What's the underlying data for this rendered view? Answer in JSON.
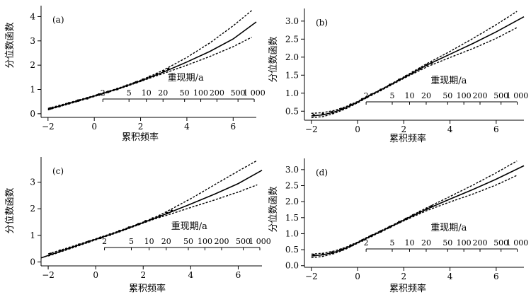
{
  "figure": {
    "panels": [
      "(a)",
      "(b)",
      "(c)",
      "(d)"
    ],
    "x_label": "累积频率",
    "y_label": "分位数函数",
    "return_period_title": "重现期/a"
  },
  "chart_data": [
    {
      "type": "line",
      "panel_label": "(a)",
      "xlabel": "累积频率",
      "ylabel": "分位数函数",
      "xlim": [
        -2.3,
        7.0
      ],
      "ylim": [
        -0.15,
        4.45
      ],
      "xticks": [
        -2,
        0,
        2,
        4,
        6
      ],
      "yticks": [
        0,
        1,
        2,
        3,
        4
      ],
      "return_period": {
        "title": "重现期/a",
        "labels": [
          "2",
          "5",
          "10",
          "20",
          "50",
          "100",
          "200",
          "500",
          "1 000"
        ],
        "positions": [
          0.37,
          1.5,
          2.25,
          2.97,
          3.9,
          4.6,
          5.3,
          6.21,
          6.91
        ]
      },
      "series": [
        {
          "style": "solid",
          "x": [
            -2.0,
            -1.0,
            0.0,
            1.0,
            2.0,
            3.0,
            4.0,
            5.0,
            6.0,
            7.0
          ],
          "y": [
            0.18,
            0.45,
            0.73,
            1.02,
            1.35,
            1.72,
            2.13,
            2.57,
            3.08,
            3.78
          ]
        },
        {
          "style": "dashed",
          "x": [
            -2.0,
            -1.0,
            0.0,
            1.0,
            2.0,
            2.5,
            3.0,
            4.0,
            5.0,
            6.0,
            6.8
          ],
          "y": [
            0.22,
            0.48,
            0.75,
            1.04,
            1.38,
            1.58,
            1.8,
            2.32,
            2.92,
            3.62,
            4.25
          ]
        },
        {
          "style": "dashed",
          "x": [
            -2.0,
            -1.0,
            0.0,
            1.0,
            2.0,
            2.5,
            3.0,
            4.0,
            5.0,
            6.0,
            6.8
          ],
          "y": [
            0.16,
            0.43,
            0.71,
            1.0,
            1.33,
            1.5,
            1.66,
            2.0,
            2.36,
            2.76,
            3.15
          ]
        }
      ],
      "points": {
        "x": [
          -1.9,
          -1.5,
          -1.1,
          -0.7,
          -0.3,
          0.2,
          0.6,
          1.0,
          1.4,
          1.8,
          2.1,
          2.4,
          2.7,
          3.0,
          3.2
        ],
        "y": [
          0.22,
          0.32,
          0.43,
          0.54,
          0.64,
          0.79,
          0.9,
          1.02,
          1.15,
          1.29,
          1.4,
          1.52,
          1.64,
          1.75,
          1.84
        ]
      }
    },
    {
      "type": "line",
      "panel_label": "(b)",
      "xlabel": "累积频率",
      "ylabel": "分位数函数",
      "xlim": [
        -2.3,
        7.2
      ],
      "ylim": [
        0.25,
        3.35
      ],
      "xticks": [
        -2,
        0,
        2,
        4,
        6
      ],
      "yticks": [
        0.5,
        1.0,
        1.5,
        2.0,
        2.5,
        3.0
      ],
      "return_period": {
        "title": "重现期/a",
        "labels": [
          "2",
          "5",
          "10",
          "20",
          "50",
          "100",
          "200",
          "500",
          "1 000"
        ],
        "positions": [
          0.37,
          1.5,
          2.25,
          2.97,
          3.9,
          4.6,
          5.3,
          6.21,
          6.91
        ]
      },
      "series": [
        {
          "style": "solid",
          "x": [
            -2.0,
            -1.5,
            -1.0,
            -0.5,
            0.0,
            0.5,
            1.0,
            2.0,
            3.0,
            4.0,
            5.0,
            6.0,
            7.2
          ],
          "y": [
            0.37,
            0.4,
            0.48,
            0.6,
            0.75,
            0.93,
            1.09,
            1.43,
            1.78,
            2.08,
            2.38,
            2.7,
            3.12
          ]
        },
        {
          "style": "dashed",
          "x": [
            -2.0,
            -1.5,
            -1.0,
            -0.5,
            0.0,
            0.5,
            1.0,
            2.0,
            3.0,
            4.0,
            5.0,
            6.0,
            6.9
          ],
          "y": [
            0.44,
            0.46,
            0.52,
            0.63,
            0.77,
            0.94,
            1.1,
            1.45,
            1.82,
            2.16,
            2.52,
            2.9,
            3.27
          ]
        },
        {
          "style": "dashed",
          "x": [
            -2.0,
            -1.5,
            -1.0,
            -0.5,
            0.0,
            0.5,
            1.0,
            2.0,
            3.0,
            4.0,
            5.0,
            6.0,
            6.9
          ],
          "y": [
            0.32,
            0.35,
            0.44,
            0.57,
            0.73,
            0.91,
            1.07,
            1.41,
            1.73,
            1.99,
            2.24,
            2.52,
            2.82
          ]
        }
      ],
      "points": {
        "x": [
          -1.9,
          -1.5,
          -1.1,
          -0.7,
          -0.3,
          0.2,
          0.6,
          1.0,
          1.4,
          1.8,
          2.1,
          2.4,
          2.7,
          3.0,
          3.2
        ],
        "y": [
          0.39,
          0.42,
          0.47,
          0.56,
          0.68,
          0.83,
          0.96,
          1.09,
          1.23,
          1.37,
          1.47,
          1.58,
          1.68,
          1.78,
          1.84
        ]
      }
    },
    {
      "type": "line",
      "panel_label": "(c)",
      "xlabel": "累积频率",
      "ylabel": "分位数函数",
      "xlim": [
        -2.3,
        7.0
      ],
      "ylim": [
        -0.15,
        3.95
      ],
      "xticks": [
        -2,
        0,
        2,
        4,
        6
      ],
      "yticks": [
        0,
        1,
        2,
        3
      ],
      "return_period": {
        "title": "重现期/a",
        "labels": [
          "2",
          "5",
          "10",
          "20",
          "50",
          "100",
          "200",
          "500",
          "1 000"
        ],
        "positions": [
          0.37,
          1.5,
          2.25,
          2.97,
          3.9,
          4.6,
          5.3,
          6.21,
          6.91
        ]
      },
      "series": [
        {
          "style": "solid",
          "x": [
            -2.3,
            -1.0,
            0.0,
            1.0,
            2.0,
            3.0,
            4.0,
            5.0,
            6.0,
            7.0
          ],
          "y": [
            0.15,
            0.55,
            0.85,
            1.15,
            1.48,
            1.82,
            2.18,
            2.55,
            2.95,
            3.45
          ]
        },
        {
          "style": "dashed",
          "x": [
            -2.0,
            -1.0,
            0.0,
            1.0,
            2.0,
            2.5,
            3.0,
            4.0,
            5.0,
            6.0,
            6.8
          ],
          "y": [
            0.3,
            0.58,
            0.87,
            1.17,
            1.5,
            1.68,
            1.9,
            2.38,
            2.9,
            3.42,
            3.82
          ]
        },
        {
          "style": "dashed",
          "x": [
            -2.0,
            -1.0,
            0.0,
            1.0,
            2.0,
            2.5,
            3.0,
            4.0,
            5.0,
            6.0,
            6.8
          ],
          "y": [
            0.22,
            0.52,
            0.83,
            1.13,
            1.46,
            1.62,
            1.76,
            2.05,
            2.33,
            2.63,
            2.9
          ]
        }
      ],
      "points": {
        "x": [
          -1.9,
          -1.5,
          -1.1,
          -0.7,
          -0.3,
          0.2,
          0.6,
          1.0,
          1.4,
          1.8,
          2.1,
          2.4,
          2.7,
          3.0,
          3.2
        ],
        "y": [
          0.3,
          0.42,
          0.53,
          0.65,
          0.76,
          0.91,
          1.03,
          1.16,
          1.29,
          1.42,
          1.53,
          1.63,
          1.73,
          1.84,
          1.92
        ]
      }
    },
    {
      "type": "line",
      "panel_label": "(d)",
      "xlabel": "累积频率",
      "ylabel": "分位数函数",
      "xlim": [
        -2.3,
        7.2
      ],
      "ylim": [
        -0.05,
        3.35
      ],
      "xticks": [
        -2,
        0,
        2,
        4,
        6
      ],
      "yticks": [
        0,
        0.5,
        1.0,
        1.5,
        2.0,
        2.5,
        3.0
      ],
      "return_period": {
        "title": "重现期/a",
        "labels": [
          "2",
          "5",
          "10",
          "20",
          "50",
          "100",
          "200",
          "500",
          "1 000"
        ],
        "positions": [
          0.37,
          1.5,
          2.25,
          2.97,
          3.9,
          4.6,
          5.3,
          6.21,
          6.91
        ]
      },
      "series": [
        {
          "style": "solid",
          "x": [
            -2.0,
            -1.5,
            -1.0,
            -0.5,
            0.0,
            0.5,
            1.0,
            2.0,
            3.0,
            4.0,
            5.0,
            6.0,
            7.2
          ],
          "y": [
            0.3,
            0.34,
            0.42,
            0.55,
            0.72,
            0.9,
            1.07,
            1.42,
            1.77,
            2.08,
            2.38,
            2.7,
            3.12
          ]
        },
        {
          "style": "dashed",
          "x": [
            -2.0,
            -1.5,
            -1.0,
            -0.5,
            0.0,
            0.5,
            1.0,
            2.0,
            3.0,
            4.0,
            5.0,
            6.0,
            6.9
          ],
          "y": [
            0.36,
            0.39,
            0.46,
            0.58,
            0.74,
            0.92,
            1.09,
            1.44,
            1.81,
            2.16,
            2.52,
            2.9,
            3.27
          ]
        },
        {
          "style": "dashed",
          "x": [
            -2.0,
            -1.5,
            -1.0,
            -0.5,
            0.0,
            0.5,
            1.0,
            2.0,
            3.0,
            4.0,
            5.0,
            6.0,
            6.9
          ],
          "y": [
            0.25,
            0.29,
            0.38,
            0.52,
            0.7,
            0.88,
            1.05,
            1.4,
            1.72,
            1.99,
            2.24,
            2.52,
            2.82
          ]
        }
      ],
      "points": {
        "x": [
          -1.9,
          -1.5,
          -1.1,
          -0.7,
          -0.3,
          0.2,
          0.6,
          1.0,
          1.4,
          1.8,
          2.1,
          2.4,
          2.7,
          3.0,
          3.2
        ],
        "y": [
          0.33,
          0.36,
          0.41,
          0.5,
          0.63,
          0.79,
          0.93,
          1.07,
          1.21,
          1.36,
          1.46,
          1.57,
          1.68,
          1.78,
          1.85
        ]
      }
    }
  ]
}
